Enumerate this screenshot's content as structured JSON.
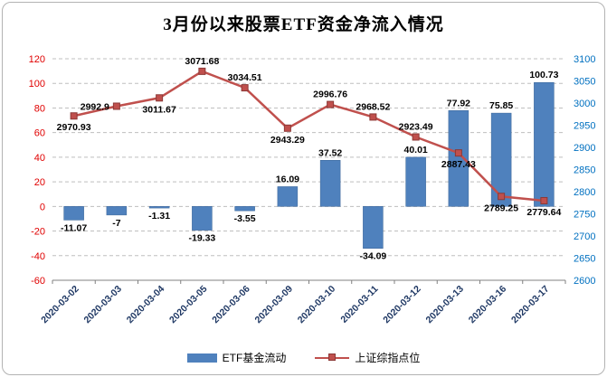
{
  "chart_data": {
    "type": "combo",
    "title": "3月份以来股票ETF资金净流入情况",
    "categories": [
      "2020-03-02",
      "2020-03-03",
      "2020-03-04",
      "2020-03-05",
      "2020-03-06",
      "2020-03-09",
      "2020-03-10",
      "2020-03-11",
      "2020-03-12",
      "2020-03-13",
      "2020-03-16",
      "2020-03-17"
    ],
    "series": [
      {
        "name": "ETF基金流动",
        "type": "bar",
        "axis": "left",
        "color": "#4F81BD",
        "values": [
          -11.07,
          -7,
          -1.31,
          -19.33,
          -3.55,
          16.09,
          37.52,
          -34.09,
          40.01,
          77.92,
          75.85,
          100.73
        ],
        "labels": [
          "-11.07",
          "-7",
          "-1.31",
          "-19.33",
          "-3.55",
          "16.09",
          "37.52",
          "-34.09",
          "40.01",
          "77.92",
          "75.85",
          "100.73"
        ]
      },
      {
        "name": "上证综指点位",
        "type": "line",
        "axis": "right",
        "color": "#C0504D",
        "marker": "square",
        "values": [
          2970.93,
          2992.9,
          3011.67,
          3071.68,
          3034.51,
          2943.29,
          2996.76,
          2968.52,
          2923.49,
          2887.43,
          2789.25,
          2779.64
        ],
        "labels": [
          "2970.93",
          "2992.9",
          "3011.67",
          "3071.68",
          "3034.51",
          "2943.29",
          "2996.76",
          "2968.52",
          "2923.49",
          "2887.43",
          "2789.25",
          "2779.64"
        ]
      }
    ],
    "left_axis": {
      "min": -60,
      "max": 120,
      "tick_labels": [
        "120",
        "100",
        "80",
        "60",
        "40",
        "20",
        "0",
        "-20",
        "-40",
        "-60"
      ],
      "color": "#E00000"
    },
    "right_axis": {
      "min": 2600,
      "max": 3100,
      "tick_labels": [
        "3100",
        "3050",
        "3000",
        "2950",
        "2900",
        "2850",
        "2800",
        "2750",
        "2700",
        "2650",
        "2600"
      ],
      "color": "#0070C0"
    },
    "x_label_color": "#1F3864",
    "data_label_color": "#000000",
    "grid": true,
    "grid_color": "#BFBFBF",
    "axis_line_color": "#808080",
    "legend_position": "bottom"
  }
}
